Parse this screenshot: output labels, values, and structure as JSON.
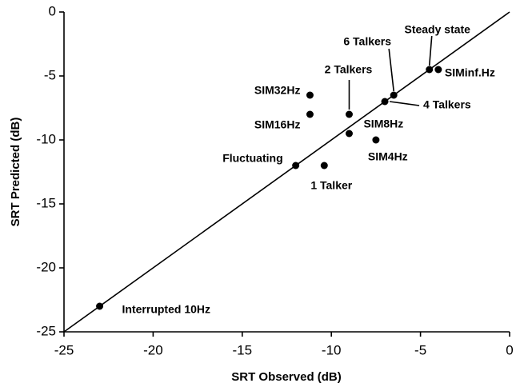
{
  "chart_data": {
    "type": "scatter",
    "x_label": "SRT Observed (dB)",
    "y_label": "SRT Predicted (dB)",
    "labels": [
      "Interrupted 10Hz",
      "Fluctuating",
      "1 Talker",
      "SIM8Hz",
      "SIM4Hz",
      "SIM16Hz",
      "SIM32Hz",
      "2 Talkers",
      "4 Talkers",
      "6 Talkers",
      "Steady state",
      "SIMinf.Hz"
    ],
    "x": [
      -23,
      -12,
      -10.4,
      -9,
      -7.5,
      -11.2,
      -11.2,
      -9,
      -7,
      -6.5,
      -4.5,
      -4
    ],
    "values": [
      -23,
      -12,
      -12,
      -9.5,
      -10,
      -8,
      -6.5,
      -8,
      -7,
      -6.5,
      -4.5,
      -4.5
    ],
    "color": "#000000",
    "xlim": [
      -25,
      0
    ],
    "xticks": [
      -25,
      -20,
      -15,
      -10,
      -5,
      0
    ],
    "ylim": [
      -25,
      0
    ],
    "yticks": [
      -25,
      -20,
      -15,
      -10,
      -5,
      0
    ],
    "grid": false
  }
}
